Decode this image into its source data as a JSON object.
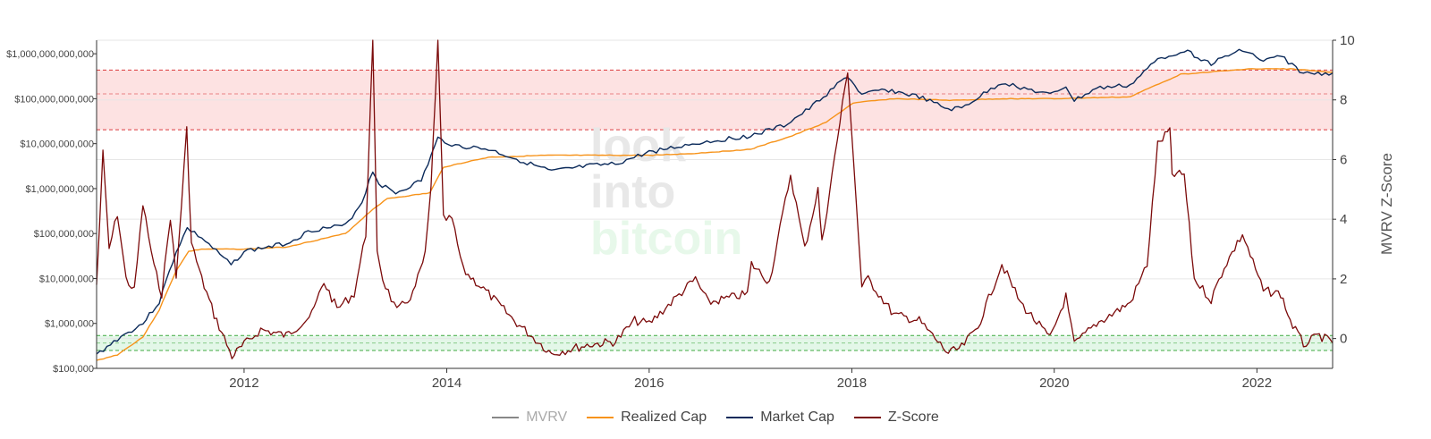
{
  "chart_data": {
    "type": "line",
    "title": "",
    "watermark": [
      "look",
      "into",
      "bitcoin"
    ],
    "colors": {
      "mvrv": "#888888",
      "realized": "#f7931a",
      "market": "#0b2a5a",
      "zscore": "#7b0a0a",
      "red_band": "#fde2e2",
      "green_band": "#e3f7e8",
      "red_dash": "#d62728",
      "green_dash": "#2ca02c",
      "watermark_gray": "#e8e8e8",
      "watermark_green": "#e7f8ea"
    },
    "x_range": [
      "2010-07-18",
      "2022-10-01"
    ],
    "x_ticks": [
      "2012",
      "2014",
      "2016",
      "2018",
      "2020",
      "2022"
    ],
    "y_left": {
      "scale": "log",
      "range": [
        100000,
        2000000000000
      ],
      "ticks": [
        {
          "value": 100000,
          "label": "$100,000"
        },
        {
          "value": 1000000,
          "label": "$1,000,000"
        },
        {
          "value": 10000000,
          "label": "$10,000,000"
        },
        {
          "value": 100000000,
          "label": "$100,000,000"
        },
        {
          "value": 1000000000,
          "label": "$1,000,000,000"
        },
        {
          "value": 10000000000,
          "label": "$10,000,000,000"
        },
        {
          "value": 100000000000,
          "label": "$100,000,000,000"
        },
        {
          "value": 1000000000000,
          "label": "$1,000,000,000,000"
        }
      ]
    },
    "y_right": {
      "scale": "linear",
      "range": [
        -1,
        10
      ],
      "ticks": [
        0,
        2,
        4,
        6,
        8,
        10
      ],
      "label": "MVRV Z-Score"
    },
    "bands": {
      "red": {
        "from": 7.0,
        "to": 9.0,
        "lines": [
          7.0,
          8.2,
          9.0
        ]
      },
      "green": {
        "from": -0.4,
        "to": 0.1,
        "lines": [
          -0.4,
          -0.15,
          0.1
        ]
      }
    },
    "legend": [
      "MVRV",
      "Realized Cap",
      "Market Cap",
      "Z-Score"
    ],
    "series": [
      {
        "name": "Market Cap",
        "axis": "left",
        "points": [
          [
            "2010-07-18",
            200000
          ],
          [
            "2010-10-01",
            450000
          ],
          [
            "2011-01-01",
            1000000
          ],
          [
            "2011-03-01",
            3000000
          ],
          [
            "2011-05-01",
            40000000
          ],
          [
            "2011-06-10",
            130000000
          ],
          [
            "2011-08-01",
            80000000
          ],
          [
            "2011-11-15",
            20000000
          ],
          [
            "2012-01-01",
            40000000
          ],
          [
            "2012-06-01",
            60000000
          ],
          [
            "2012-09-01",
            120000000
          ],
          [
            "2013-01-01",
            150000000
          ],
          [
            "2013-03-01",
            500000000
          ],
          [
            "2013-04-09",
            2500000000
          ],
          [
            "2013-05-01",
            1300000000
          ],
          [
            "2013-07-01",
            800000000
          ],
          [
            "2013-10-01",
            1500000000
          ],
          [
            "2013-11-30",
            13000000000
          ],
          [
            "2014-02-01",
            9000000000
          ],
          [
            "2014-06-01",
            7500000000
          ],
          [
            "2015-01-14",
            2400000000
          ],
          [
            "2015-06-01",
            3200000000
          ],
          [
            "2015-09-01",
            3500000000
          ],
          [
            "2016-01-01",
            6500000000
          ],
          [
            "2016-07-01",
            10500000000
          ],
          [
            "2017-01-01",
            15000000000
          ],
          [
            "2017-05-01",
            25000000000
          ],
          [
            "2017-08-01",
            60000000000
          ],
          [
            "2017-12-17",
            320000000000
          ],
          [
            "2018-02-06",
            120000000000
          ],
          [
            "2018-05-01",
            160000000000
          ],
          [
            "2018-09-01",
            110000000000
          ],
          [
            "2018-12-15",
            58000000000
          ],
          [
            "2019-02-01",
            62000000000
          ],
          [
            "2019-06-26",
            230000000000
          ],
          [
            "2019-09-01",
            180000000000
          ],
          [
            "2019-12-17",
            120000000000
          ],
          [
            "2020-02-12",
            190000000000
          ],
          [
            "2020-03-13",
            90000000000
          ],
          [
            "2020-06-01",
            170000000000
          ],
          [
            "2020-10-01",
            200000000000
          ],
          [
            "2021-01-08",
            750000000000
          ],
          [
            "2021-04-14",
            1200000000000
          ],
          [
            "2021-07-20",
            600000000000
          ],
          [
            "2021-11-10",
            1270000000000
          ],
          [
            "2022-01-24",
            680000000000
          ],
          [
            "2022-03-28",
            890000000000
          ],
          [
            "2022-06-18",
            360000000000
          ],
          [
            "2022-10-01",
            370000000000
          ]
        ]
      },
      {
        "name": "Realized Cap",
        "axis": "left",
        "points": [
          [
            "2010-07-18",
            150000
          ],
          [
            "2010-10-01",
            200000
          ],
          [
            "2011-01-01",
            500000
          ],
          [
            "2011-03-01",
            2000000
          ],
          [
            "2011-05-01",
            15000000
          ],
          [
            "2011-06-15",
            40000000
          ],
          [
            "2011-08-01",
            45000000
          ],
          [
            "2012-01-01",
            45000000
          ],
          [
            "2012-06-01",
            50000000
          ],
          [
            "2013-01-01",
            100000000
          ],
          [
            "2013-04-10",
            350000000
          ],
          [
            "2013-06-01",
            600000000
          ],
          [
            "2013-11-01",
            800000000
          ],
          [
            "2013-12-20",
            3000000000
          ],
          [
            "2014-06-01",
            5000000000
          ],
          [
            "2015-01-01",
            5500000000
          ],
          [
            "2016-01-01",
            5500000000
          ],
          [
            "2016-06-01",
            6000000000
          ],
          [
            "2017-01-01",
            7500000000
          ],
          [
            "2017-06-01",
            15000000000
          ],
          [
            "2017-10-01",
            30000000000
          ],
          [
            "2018-01-05",
            80000000000
          ],
          [
            "2018-06-01",
            100000000000
          ],
          [
            "2019-01-01",
            92000000000
          ],
          [
            "2019-07-01",
            100000000000
          ],
          [
            "2020-01-01",
            100000000000
          ],
          [
            "2020-10-01",
            110000000000
          ],
          [
            "2021-01-01",
            200000000000
          ],
          [
            "2021-04-01",
            350000000000
          ],
          [
            "2021-08-01",
            400000000000
          ],
          [
            "2021-12-01",
            460000000000
          ],
          [
            "2022-05-01",
            460000000000
          ],
          [
            "2022-10-01",
            390000000000
          ]
        ]
      },
      {
        "name": "Z-Score",
        "axis": "right",
        "points": [
          [
            "2010-07-18",
            1.8
          ],
          [
            "2010-08-10",
            6.2
          ],
          [
            "2010-09-01",
            3.0
          ],
          [
            "2010-10-01",
            4.2
          ],
          [
            "2010-11-01",
            2.0
          ],
          [
            "2010-12-01",
            1.6
          ],
          [
            "2011-01-01",
            4.5
          ],
          [
            "2011-02-10",
            2.4
          ],
          [
            "2011-03-10",
            1.5
          ],
          [
            "2011-04-10",
            4.1
          ],
          [
            "2011-05-01",
            2.0
          ],
          [
            "2011-06-08",
            7.0
          ],
          [
            "2011-06-25",
            3.2
          ],
          [
            "2011-08-01",
            2.0
          ],
          [
            "2011-09-15",
            0.8
          ],
          [
            "2011-11-18",
            -0.6
          ],
          [
            "2012-01-01",
            -0.2
          ],
          [
            "2012-03-01",
            0.3
          ],
          [
            "2012-06-01",
            0.1
          ],
          [
            "2012-09-01",
            0.8
          ],
          [
            "2012-10-15",
            1.9
          ],
          [
            "2012-12-01",
            1.0
          ],
          [
            "2013-02-01",
            1.5
          ],
          [
            "2013-03-15",
            3.5
          ],
          [
            "2013-04-09",
            10.0
          ],
          [
            "2013-04-25",
            3.0
          ],
          [
            "2013-05-15",
            2.0
          ],
          [
            "2013-07-05",
            0.9
          ],
          [
            "2013-09-01",
            1.5
          ],
          [
            "2013-10-15",
            2.8
          ],
          [
            "2013-11-05",
            5.0
          ],
          [
            "2013-11-30",
            10.0
          ],
          [
            "2013-12-20",
            4.0
          ],
          [
            "2014-01-20",
            4.0
          ],
          [
            "2014-03-01",
            2.3
          ],
          [
            "2014-06-01",
            1.5
          ],
          [
            "2014-09-01",
            0.6
          ],
          [
            "2015-01-14",
            -0.5
          ],
          [
            "2015-06-01",
            -0.2
          ],
          [
            "2015-09-01",
            -0.1
          ],
          [
            "2015-11-10",
            0.6
          ],
          [
            "2016-01-01",
            0.5
          ],
          [
            "2016-06-16",
            2.0
          ],
          [
            "2016-08-01",
            1.2
          ],
          [
            "2016-12-20",
            1.5
          ],
          [
            "2017-01-04",
            2.5
          ],
          [
            "2017-03-10",
            1.9
          ],
          [
            "2017-05-25",
            5.5
          ],
          [
            "2017-07-15",
            3.0
          ],
          [
            "2017-09-01",
            5.0
          ],
          [
            "2017-09-15",
            3.2
          ],
          [
            "2017-12-17",
            9.0
          ],
          [
            "2018-02-06",
            1.7
          ],
          [
            "2018-03-01",
            2.0
          ],
          [
            "2018-06-01",
            0.8
          ],
          [
            "2018-09-01",
            0.6
          ],
          [
            "2018-12-15",
            -0.5
          ],
          [
            "2019-02-01",
            -0.3
          ],
          [
            "2019-04-01",
            0.4
          ],
          [
            "2019-06-26",
            2.5
          ],
          [
            "2019-09-01",
            1.2
          ],
          [
            "2019-12-17",
            0.0
          ],
          [
            "2020-02-12",
            1.4
          ],
          [
            "2020-03-13",
            -0.2
          ],
          [
            "2020-06-01",
            0.5
          ],
          [
            "2020-10-01",
            1.2
          ],
          [
            "2020-12-01",
            2.5
          ],
          [
            "2021-01-08",
            6.5
          ],
          [
            "2021-02-21",
            7.0
          ],
          [
            "2021-03-01",
            5.5
          ],
          [
            "2021-04-14",
            5.5
          ],
          [
            "2021-05-20",
            2.0
          ],
          [
            "2021-07-20",
            1.3
          ],
          [
            "2021-09-05",
            2.4
          ],
          [
            "2021-11-10",
            3.5
          ],
          [
            "2022-01-24",
            1.6
          ],
          [
            "2022-03-28",
            1.5
          ],
          [
            "2022-05-01",
            0.6
          ],
          [
            "2022-06-18",
            -0.2
          ],
          [
            "2022-08-14",
            0.1
          ],
          [
            "2022-10-01",
            -0.15
          ]
        ]
      }
    ]
  }
}
